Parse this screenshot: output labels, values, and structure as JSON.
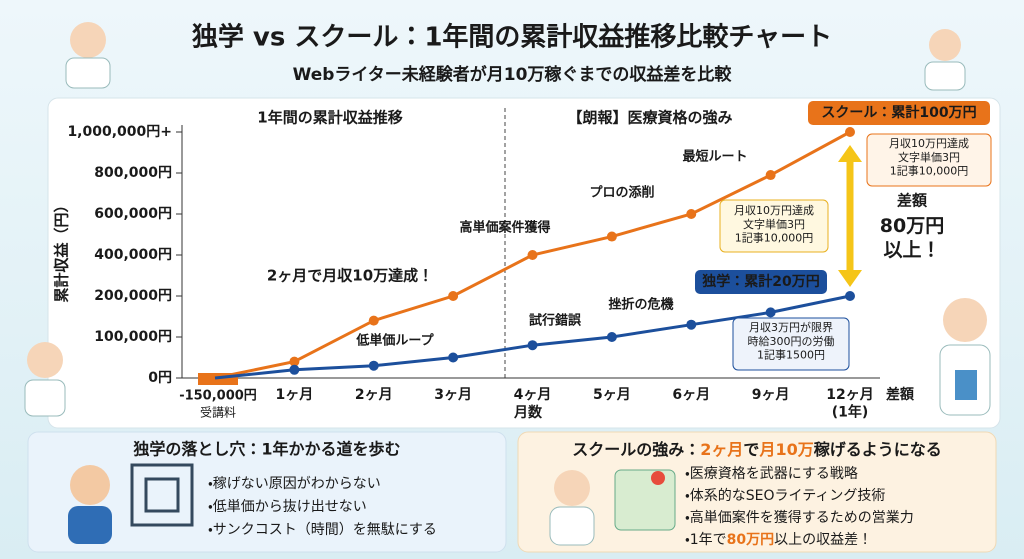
{
  "header": {
    "title": "独学 vs スクール：1年間の累計収益推移比較チャート",
    "subtitle": "Webライター未経験者が月10万稼ぐまでの収益差を比較"
  },
  "chart_data": {
    "type": "line",
    "section_labels": [
      "1年間の累計収益推移",
      "【朗報】医療資格の強み"
    ],
    "ylabel": "累計収益（円）",
    "xlabel": "月数",
    "x_end_label": "差額",
    "categories": [
      null,
      "1ヶ月",
      "2ヶ月",
      "3ヶ月",
      "4ヶ月",
      "5ヶ月",
      "6ヶ月",
      "9ヶ月",
      "12ヶ月\n(1年)"
    ],
    "start_label": "-150,000円",
    "start_note": "受講料",
    "yticks": [
      {
        "value": 0,
        "label": "0円"
      },
      {
        "value": 100000,
        "label": "100,000円"
      },
      {
        "value": 200000,
        "label": "200,000円"
      },
      {
        "value": 400000,
        "label": "400,000円"
      },
      {
        "value": 600000,
        "label": "600,000円"
      },
      {
        "value": 800000,
        "label": "800,000円"
      },
      {
        "value": 1000000,
        "label": "1,000,000円+"
      }
    ],
    "series": [
      {
        "name": "スクール：累計100万円",
        "color": "#e8731a",
        "values": [
          0,
          40000,
          140000,
          200000,
          400000,
          490000,
          600000,
          790000,
          1000000
        ],
        "note": "月収10万円達成\n文字単価3円\n1記事10,000円"
      },
      {
        "name": "独学：累計20万円",
        "color": "#1c4f9c",
        "values": [
          0,
          20000,
          30000,
          50000,
          80000,
          100000,
          130000,
          160000,
          200000
        ],
        "note": "月収3万円が限界\n時給300円の労働\n1記事1500円"
      }
    ],
    "annotations": [
      "2ヶ月で月収10万達成！",
      "高単価案件獲得",
      "プロの添削",
      "最短ルート",
      "低単価ループ",
      "試行錯誤",
      "挫折の危機"
    ],
    "mid_callout": "月収10万円達成\n文字単価3円\n1記事10,000円",
    "diff_title": "差額",
    "diff_value": "80万円\n以上！"
  },
  "left_panel": {
    "title": "独学の落とし穴：1年かかる道を歩む",
    "bullets": [
      "・稼げない原因がわからない",
      "・低単価から抜け出せない",
      "・サンクコスト（時間）を無駄にする"
    ]
  },
  "right_panel": {
    "title": [
      "スクールの強み：",
      "2ヶ月",
      "で",
      "月10万",
      "稼げるようになる"
    ],
    "bullets": [
      [
        "・医療資格を武器にする戦略"
      ],
      [
        "・体系的なSEOライティング技術"
      ],
      [
        "・高単価案件を獲得するための営業力"
      ],
      [
        "・1年で",
        "80万円",
        "以上の収益差！"
      ]
    ]
  }
}
